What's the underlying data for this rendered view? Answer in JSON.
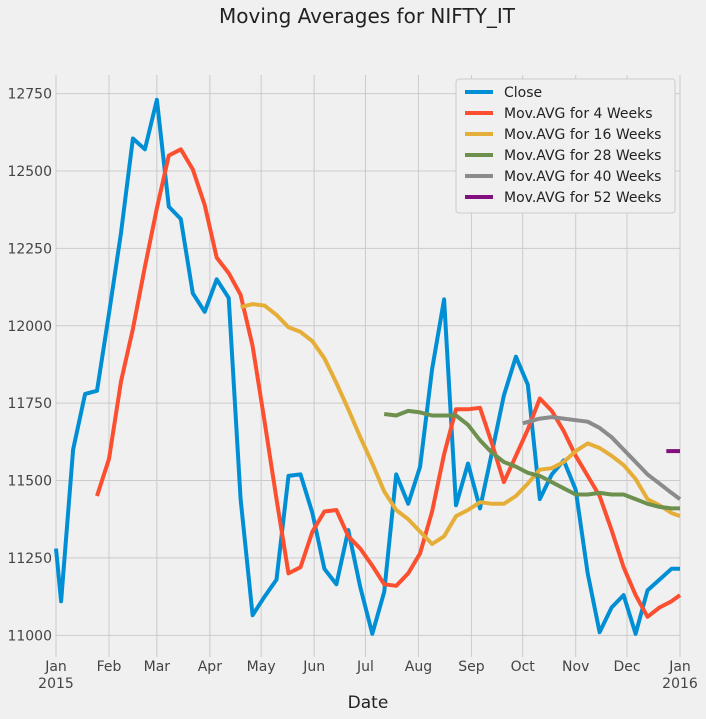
{
  "chart_data": {
    "type": "line",
    "title": "Moving Averages for NIFTY_IT",
    "xlabel": "Date",
    "ylabel": "",
    "xlim": [
      "2015-01-01",
      "2016-01-01"
    ],
    "ylim": [
      10930,
      12810
    ],
    "grid": true,
    "legend_position": "top-right",
    "yticks": [
      11000,
      11250,
      11500,
      11750,
      12000,
      12250,
      12500,
      12750
    ],
    "ytick_labels": [
      "11000",
      "11250",
      "11500",
      "11750",
      "12000",
      "12250",
      "12500",
      "12750"
    ],
    "xticks": [
      {
        "date": "2015-01-01",
        "label": "Jan",
        "sublabel": "2015"
      },
      {
        "date": "2015-02-01",
        "label": "Feb",
        "sublabel": ""
      },
      {
        "date": "2015-03-01",
        "label": "Mar",
        "sublabel": ""
      },
      {
        "date": "2015-04-01",
        "label": "Apr",
        "sublabel": ""
      },
      {
        "date": "2015-05-01",
        "label": "May",
        "sublabel": ""
      },
      {
        "date": "2015-06-01",
        "label": "Jun",
        "sublabel": ""
      },
      {
        "date": "2015-07-01",
        "label": "Jul",
        "sublabel": ""
      },
      {
        "date": "2015-08-01",
        "label": "Aug",
        "sublabel": ""
      },
      {
        "date": "2015-09-01",
        "label": "Sep",
        "sublabel": ""
      },
      {
        "date": "2015-10-01",
        "label": "Oct",
        "sublabel": ""
      },
      {
        "date": "2015-11-01",
        "label": "Nov",
        "sublabel": ""
      },
      {
        "date": "2015-12-01",
        "label": "Dec",
        "sublabel": ""
      },
      {
        "date": "2016-01-01",
        "label": "Jan",
        "sublabel": "2016"
      }
    ],
    "series": [
      {
        "name": "Close",
        "color": "#008fd5",
        "points": [
          [
            "2015-01-01",
            11280
          ],
          [
            "2015-01-04",
            11110
          ],
          [
            "2015-01-11",
            11600
          ],
          [
            "2015-01-18",
            11780
          ],
          [
            "2015-01-25",
            11790
          ],
          [
            "2015-02-01",
            12040
          ],
          [
            "2015-02-08",
            12300
          ],
          [
            "2015-02-15",
            12605
          ],
          [
            "2015-02-22",
            12570
          ],
          [
            "2015-03-01",
            12730
          ],
          [
            "2015-03-08",
            12385
          ],
          [
            "2015-03-15",
            12345
          ],
          [
            "2015-03-22",
            12105
          ],
          [
            "2015-03-29",
            12045
          ],
          [
            "2015-04-05",
            12150
          ],
          [
            "2015-04-12",
            12090
          ],
          [
            "2015-04-19",
            11440
          ],
          [
            "2015-04-26",
            11065
          ],
          [
            "2015-05-03",
            11125
          ],
          [
            "2015-05-10",
            11180
          ],
          [
            "2015-05-17",
            11515
          ],
          [
            "2015-05-24",
            11520
          ],
          [
            "2015-05-31",
            11395
          ],
          [
            "2015-06-07",
            11215
          ],
          [
            "2015-06-14",
            11165
          ],
          [
            "2015-06-21",
            11340
          ],
          [
            "2015-06-28",
            11155
          ],
          [
            "2015-07-05",
            11005
          ],
          [
            "2015-07-12",
            11140
          ],
          [
            "2015-07-19",
            11520
          ],
          [
            "2015-07-26",
            11425
          ],
          [
            "2015-08-02",
            11545
          ],
          [
            "2015-08-09",
            11860
          ],
          [
            "2015-08-16",
            12085
          ],
          [
            "2015-08-23",
            11420
          ],
          [
            "2015-08-30",
            11555
          ],
          [
            "2015-09-06",
            11410
          ],
          [
            "2015-09-13",
            11590
          ],
          [
            "2015-09-20",
            11775
          ],
          [
            "2015-09-27",
            11900
          ],
          [
            "2015-10-04",
            11810
          ],
          [
            "2015-10-11",
            11440
          ],
          [
            "2015-10-18",
            11520
          ],
          [
            "2015-10-25",
            11565
          ],
          [
            "2015-11-01",
            11470
          ],
          [
            "2015-11-08",
            11200
          ],
          [
            "2015-11-15",
            11010
          ],
          [
            "2015-11-22",
            11090
          ],
          [
            "2015-11-29",
            11130
          ],
          [
            "2015-12-06",
            11005
          ],
          [
            "2015-12-13",
            11145
          ],
          [
            "2015-12-20",
            11180
          ],
          [
            "2015-12-27",
            11215
          ],
          [
            "2016-01-01",
            11215
          ]
        ]
      },
      {
        "name": " Mov.AVG for 4 Weeks",
        "color": "#fc4f30",
        "points": [
          [
            "2015-01-25",
            11450
          ],
          [
            "2015-02-01",
            11570
          ],
          [
            "2015-02-08",
            11820
          ],
          [
            "2015-02-15",
            11990
          ],
          [
            "2015-02-22",
            12190
          ],
          [
            "2015-03-01",
            12380
          ],
          [
            "2015-03-08",
            12550
          ],
          [
            "2015-03-15",
            12570
          ],
          [
            "2015-03-22",
            12505
          ],
          [
            "2015-03-29",
            12390
          ],
          [
            "2015-04-05",
            12220
          ],
          [
            "2015-04-12",
            12170
          ],
          [
            "2015-04-19",
            12100
          ],
          [
            "2015-04-26",
            11935
          ],
          [
            "2015-05-03",
            11690
          ],
          [
            "2015-05-10",
            11440
          ],
          [
            "2015-05-17",
            11200
          ],
          [
            "2015-05-24",
            11220
          ],
          [
            "2015-05-31",
            11335
          ],
          [
            "2015-06-07",
            11400
          ],
          [
            "2015-06-14",
            11405
          ],
          [
            "2015-06-21",
            11320
          ],
          [
            "2015-06-28",
            11280
          ],
          [
            "2015-07-05",
            11225
          ],
          [
            "2015-07-12",
            11165
          ],
          [
            "2015-07-19",
            11160
          ],
          [
            "2015-07-26",
            11200
          ],
          [
            "2015-08-02",
            11265
          ],
          [
            "2015-08-09",
            11400
          ],
          [
            "2015-08-16",
            11585
          ],
          [
            "2015-08-23",
            11730
          ],
          [
            "2015-08-30",
            11730
          ],
          [
            "2015-09-06",
            11735
          ],
          [
            "2015-09-13",
            11620
          ],
          [
            "2015-09-20",
            11495
          ],
          [
            "2015-09-27",
            11580
          ],
          [
            "2015-10-04",
            11665
          ],
          [
            "2015-10-11",
            11765
          ],
          [
            "2015-10-18",
            11725
          ],
          [
            "2015-10-25",
            11660
          ],
          [
            "2015-11-01",
            11580
          ],
          [
            "2015-11-08",
            11515
          ],
          [
            "2015-11-15",
            11450
          ],
          [
            "2015-11-22",
            11340
          ],
          [
            "2015-11-29",
            11220
          ],
          [
            "2015-12-06",
            11130
          ],
          [
            "2015-12-13",
            11060
          ],
          [
            "2015-12-20",
            11090
          ],
          [
            "2015-12-27",
            11110
          ],
          [
            "2016-01-01",
            11130
          ]
        ]
      },
      {
        "name": " Mov.AVG for 16 Weeks",
        "color": "#e5ae38",
        "points": [
          [
            "2015-04-19",
            12060
          ],
          [
            "2015-04-26",
            12070
          ],
          [
            "2015-05-03",
            12065
          ],
          [
            "2015-05-10",
            12035
          ],
          [
            "2015-05-17",
            11995
          ],
          [
            "2015-05-24",
            11980
          ],
          [
            "2015-05-31",
            11950
          ],
          [
            "2015-06-07",
            11895
          ],
          [
            "2015-06-14",
            11815
          ],
          [
            "2015-06-21",
            11730
          ],
          [
            "2015-06-28",
            11640
          ],
          [
            "2015-07-05",
            11555
          ],
          [
            "2015-07-12",
            11465
          ],
          [
            "2015-07-19",
            11405
          ],
          [
            "2015-07-26",
            11375
          ],
          [
            "2015-08-02",
            11335
          ],
          [
            "2015-08-09",
            11295
          ],
          [
            "2015-08-16",
            11320
          ],
          [
            "2015-08-23",
            11385
          ],
          [
            "2015-08-30",
            11405
          ],
          [
            "2015-09-06",
            11430
          ],
          [
            "2015-09-13",
            11425
          ],
          [
            "2015-09-20",
            11425
          ],
          [
            "2015-09-27",
            11450
          ],
          [
            "2015-10-04",
            11490
          ],
          [
            "2015-10-11",
            11535
          ],
          [
            "2015-10-18",
            11540
          ],
          [
            "2015-10-25",
            11560
          ],
          [
            "2015-11-01",
            11595
          ],
          [
            "2015-11-08",
            11620
          ],
          [
            "2015-11-15",
            11605
          ],
          [
            "2015-11-22",
            11580
          ],
          [
            "2015-11-29",
            11550
          ],
          [
            "2015-12-06",
            11505
          ],
          [
            "2015-12-13",
            11440
          ],
          [
            "2015-12-20",
            11420
          ],
          [
            "2015-12-27",
            11395
          ],
          [
            "2016-01-01",
            11385
          ]
        ]
      },
      {
        "name": " Mov.AVG for 28 Weeks",
        "color": "#6d904f",
        "points": [
          [
            "2015-07-12",
            11715
          ],
          [
            "2015-07-19",
            11710
          ],
          [
            "2015-07-26",
            11725
          ],
          [
            "2015-08-02",
            11720
          ],
          [
            "2015-08-09",
            11710
          ],
          [
            "2015-08-16",
            11710
          ],
          [
            "2015-08-23",
            11710
          ],
          [
            "2015-08-30",
            11680
          ],
          [
            "2015-09-06",
            11630
          ],
          [
            "2015-09-13",
            11590
          ],
          [
            "2015-09-20",
            11560
          ],
          [
            "2015-09-27",
            11545
          ],
          [
            "2015-10-04",
            11525
          ],
          [
            "2015-10-11",
            11515
          ],
          [
            "2015-10-18",
            11495
          ],
          [
            "2015-10-25",
            11475
          ],
          [
            "2015-11-01",
            11455
          ],
          [
            "2015-11-08",
            11455
          ],
          [
            "2015-11-15",
            11460
          ],
          [
            "2015-11-22",
            11455
          ],
          [
            "2015-11-29",
            11455
          ],
          [
            "2015-12-06",
            11440
          ],
          [
            "2015-12-13",
            11425
          ],
          [
            "2015-12-20",
            11415
          ],
          [
            "2015-12-27",
            11410
          ],
          [
            "2016-01-01",
            11410
          ]
        ]
      },
      {
        "name": " Mov.AVG for 40 Weeks",
        "color": "#8b8b8b",
        "points": [
          [
            "2015-10-01",
            11685
          ],
          [
            "2015-10-11",
            11700
          ],
          [
            "2015-10-18",
            11705
          ],
          [
            "2015-10-25",
            11700
          ],
          [
            "2015-11-01",
            11695
          ],
          [
            "2015-11-08",
            11690
          ],
          [
            "2015-11-15",
            11670
          ],
          [
            "2015-11-22",
            11640
          ],
          [
            "2015-11-29",
            11600
          ],
          [
            "2015-12-06",
            11560
          ],
          [
            "2015-12-13",
            11520
          ],
          [
            "2015-12-20",
            11490
          ],
          [
            "2015-12-27",
            11460
          ],
          [
            "2016-01-01",
            11440
          ]
        ]
      },
      {
        "name": " Mov.AVG for 52 Weeks",
        "color": "#810f7c",
        "points": [
          [
            "2015-12-24",
            11595
          ],
          [
            "2016-01-01",
            11595
          ]
        ]
      }
    ]
  }
}
